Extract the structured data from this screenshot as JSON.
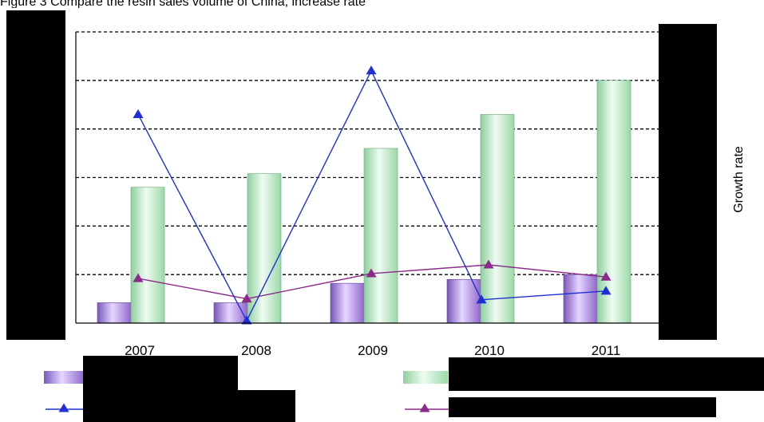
{
  "top_caption": "Figure 3 Compare the resin sales volume of China, increase rate",
  "chart_data": {
    "type": "bar",
    "categories": [
      "2007",
      "2008",
      "2009",
      "2010",
      "2011"
    ],
    "y2label": "Growth rate",
    "series": [
      {
        "kind": "bar",
        "color": "#b48ce6",
        "values": [
          0.42,
          0.42,
          0.82,
          0.9,
          1.0
        ]
      },
      {
        "kind": "bar",
        "color": "#bfeac9",
        "values": [
          2.8,
          3.08,
          3.6,
          4.3,
          5.0
        ]
      },
      {
        "kind": "line",
        "color": "#1f2fd6",
        "marker": "triangle",
        "values": [
          4.3,
          0.05,
          5.2,
          0.48,
          0.66
        ]
      },
      {
        "kind": "line",
        "color": "#8b2a8b",
        "marker": "triangle",
        "values": [
          0.92,
          0.5,
          1.02,
          1.2,
          0.95
        ]
      }
    ],
    "ylim": [
      0,
      6
    ],
    "grid": "dashed horizontal",
    "legend": "bottom"
  },
  "colors": {
    "bar_purple": "#b48ce6",
    "bar_green": "#bfeac9",
    "line_blue": "#1f2fd6",
    "line_purple": "#8b2a8b"
  }
}
